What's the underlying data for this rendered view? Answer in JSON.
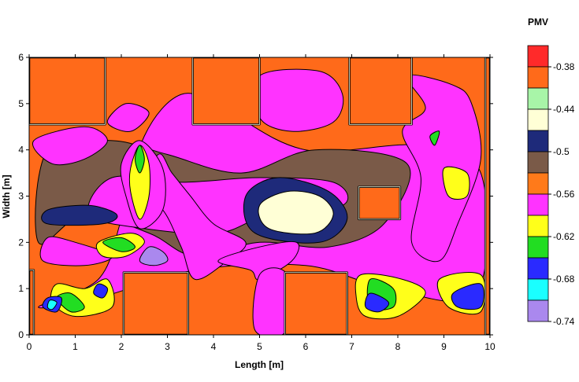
{
  "chart_data": {
    "type": "heatmap",
    "title": "",
    "xlabel": "Length [m]",
    "ylabel": "Width [m]",
    "xlim": [
      0,
      10
    ],
    "ylim": [
      0,
      6
    ],
    "x_ticks": [
      "0",
      "1",
      "2",
      "3",
      "4",
      "5",
      "6",
      "7",
      "8",
      "9",
      "10"
    ],
    "y_ticks": [
      "0",
      "1",
      "2",
      "3",
      "4",
      "5",
      "6"
    ],
    "grid": false,
    "legend_position": "right",
    "colorbar": {
      "title": "PMV",
      "levels": [
        {
          "label": "",
          "color": "#ff2a2a"
        },
        {
          "label": "-0.38",
          "color": "#ff6a1a"
        },
        {
          "label": "",
          "color": "#a8f5a8"
        },
        {
          "label": "-0.44",
          "color": "#ffffd6"
        },
        {
          "label": "",
          "color": "#1e2a7a"
        },
        {
          "label": "-0.5",
          "color": "#7a5a48"
        },
        {
          "label": "",
          "color": "#ff7a1a"
        },
        {
          "label": "-0.56",
          "color": "#ff33ff"
        },
        {
          "label": "",
          "color": "#ffff1a"
        },
        {
          "label": "-0.62",
          "color": "#22dd22"
        },
        {
          "label": "",
          "color": "#2a2aff"
        },
        {
          "label": "-0.68",
          "color": "#1affff"
        },
        {
          "label": "",
          "color": "#aa88ee"
        },
        {
          "label": "-0.74",
          "color": ""
        }
      ]
    },
    "room_outline": [
      [
        0.1,
        0.1
      ],
      [
        2.0,
        0.1
      ],
      [
        2.0,
        1.35
      ],
      [
        3.5,
        1.35
      ],
      [
        3.5,
        0.1
      ],
      [
        7.0,
        0.1
      ],
      [
        7.0,
        1.35
      ],
      [
        7.0,
        1.35
      ],
      [
        9.9,
        1.35
      ],
      [
        9.9,
        0.1
      ]
    ],
    "zones": [
      {
        "level": 1,
        "points": [
          [
            0,
            0
          ],
          [
            10,
            0
          ],
          [
            10,
            6
          ],
          [
            0,
            6
          ]
        ]
      },
      {
        "level": 7,
        "points": [
          [
            0.2,
            0.6
          ],
          [
            1.5,
            1.2
          ],
          [
            2.0,
            2.5
          ],
          [
            2.5,
            4.3
          ],
          [
            3.3,
            5.2
          ],
          [
            4.2,
            4.9
          ],
          [
            6.0,
            4.0
          ],
          [
            8.5,
            4.1
          ],
          [
            9.8,
            3.5
          ],
          [
            9.7,
            0.9
          ],
          [
            7.8,
            1.0
          ],
          [
            6.0,
            1.5
          ],
          [
            3.6,
            1.4
          ],
          [
            1.5,
            0.8
          ]
        ]
      },
      {
        "level": 5,
        "points": [
          [
            0.2,
            2.0
          ],
          [
            1.2,
            2.6
          ],
          [
            2.6,
            2.2
          ],
          [
            3.6,
            1.7
          ],
          [
            5.0,
            2.0
          ],
          [
            6.5,
            1.9
          ],
          [
            7.7,
            2.4
          ],
          [
            8.2,
            3.7
          ],
          [
            6.2,
            4.0
          ],
          [
            4.6,
            3.5
          ],
          [
            3.0,
            3.9
          ],
          [
            1.8,
            4.2
          ],
          [
            0.4,
            4.0
          ]
        ]
      },
      {
        "level": 7,
        "points": [
          [
            1.3,
            2.6
          ],
          [
            2.5,
            2.3
          ],
          [
            4.1,
            2.2
          ],
          [
            5.2,
            2.6
          ],
          [
            6.8,
            2.8
          ],
          [
            6.6,
            3.3
          ],
          [
            5.0,
            3.4
          ],
          [
            3.3,
            3.3
          ],
          [
            1.8,
            3.4
          ]
        ]
      },
      {
        "level": 4,
        "points": [
          [
            4.9,
            2.2
          ],
          [
            6.3,
            2.0
          ],
          [
            6.9,
            2.5
          ],
          [
            6.5,
            3.1
          ],
          [
            5.4,
            3.4
          ],
          [
            4.7,
            3.0
          ]
        ]
      },
      {
        "level": 3,
        "points": [
          [
            5.2,
            2.3
          ],
          [
            6.2,
            2.2
          ],
          [
            6.6,
            2.6
          ],
          [
            6.3,
            3.0
          ],
          [
            5.6,
            3.1
          ],
          [
            5.0,
            2.8
          ]
        ]
      },
      {
        "level": 4,
        "points": [
          [
            0.4,
            2.4
          ],
          [
            1.6,
            2.4
          ],
          [
            1.9,
            2.6
          ],
          [
            1.3,
            2.8
          ],
          [
            0.4,
            2.7
          ]
        ]
      },
      {
        "level": 7,
        "points": [
          [
            0.1,
            4.2
          ],
          [
            1.2,
            4.5
          ],
          [
            1.7,
            4.2
          ],
          [
            1.2,
            3.8
          ],
          [
            0.5,
            3.7
          ]
        ]
      },
      {
        "level": 7,
        "points": [
          [
            0.3,
            1.6
          ],
          [
            1.2,
            1.5
          ],
          [
            1.8,
            1.7
          ],
          [
            1.0,
            2.0
          ],
          [
            0.4,
            2.1
          ]
        ]
      },
      {
        "level": 7,
        "points": [
          [
            2.4,
            3.0
          ],
          [
            2.9,
            2.7
          ],
          [
            3.3,
            1.9
          ],
          [
            3.6,
            1.2
          ],
          [
            4.3,
            1.6
          ],
          [
            4.7,
            2.0
          ],
          [
            4.0,
            2.4
          ],
          [
            3.5,
            3.0
          ],
          [
            3.1,
            3.5
          ],
          [
            2.8,
            3.9
          ]
        ]
      },
      {
        "level": 7,
        "points": [
          [
            4.1,
            1.6
          ],
          [
            4.8,
            1.4
          ],
          [
            5.0,
            1.2
          ],
          [
            5.7,
            1.6
          ],
          [
            5.8,
            2.0
          ],
          [
            5.0,
            1.9
          ]
        ]
      },
      {
        "level": 7,
        "points": [
          [
            4.9,
            0.1
          ],
          [
            5.6,
            0.1
          ],
          [
            5.6,
            1.3
          ],
          [
            5.0,
            1.3
          ]
        ]
      },
      {
        "level": 7,
        "points": [
          [
            5.0,
            5.6
          ],
          [
            6.3,
            5.7
          ],
          [
            6.8,
            5.2
          ],
          [
            6.6,
            4.6
          ],
          [
            5.7,
            4.4
          ],
          [
            5.0,
            4.7
          ]
        ]
      },
      {
        "level": 7,
        "points": [
          [
            1.7,
            4.6
          ],
          [
            2.1,
            5.0
          ],
          [
            2.6,
            4.8
          ],
          [
            2.2,
            4.4
          ]
        ]
      },
      {
        "level": 7,
        "points": [
          [
            8.2,
            5.6
          ],
          [
            9.2,
            5.4
          ],
          [
            9.6,
            5.0
          ],
          [
            9.8,
            3.8
          ],
          [
            9.3,
            2.4
          ],
          [
            8.9,
            1.6
          ],
          [
            8.3,
            2.0
          ],
          [
            8.5,
            3.4
          ],
          [
            8.1,
            4.4
          ],
          [
            8.6,
            4.9
          ]
        ]
      },
      {
        "level": 7,
        "points": [
          [
            2.4,
            4.2
          ],
          [
            2.9,
            3.6
          ],
          [
            2.9,
            2.7
          ],
          [
            2.4,
            2.3
          ],
          [
            2.1,
            3.0
          ],
          [
            2.0,
            3.7
          ]
        ]
      },
      {
        "level": 8,
        "points": [
          [
            2.4,
            4.1
          ],
          [
            2.6,
            3.7
          ],
          [
            2.6,
            3.0
          ],
          [
            2.4,
            2.5
          ],
          [
            2.2,
            3.1
          ],
          [
            2.2,
            3.6
          ]
        ]
      },
      {
        "level": 9,
        "points": [
          [
            2.4,
            4.1
          ],
          [
            2.5,
            3.8
          ],
          [
            2.4,
            3.5
          ],
          [
            2.3,
            3.8
          ]
        ]
      },
      {
        "level": 8,
        "points": [
          [
            1.5,
            2.0
          ],
          [
            2.2,
            2.2
          ],
          [
            2.5,
            2.0
          ],
          [
            2.1,
            1.7
          ],
          [
            1.6,
            1.7
          ]
        ]
      },
      {
        "level": 9,
        "points": [
          [
            1.6,
            2.0
          ],
          [
            2.0,
            2.1
          ],
          [
            2.3,
            1.9
          ],
          [
            2.0,
            1.8
          ]
        ]
      },
      {
        "level": 8,
        "points": [
          [
            0.5,
            0.7
          ],
          [
            1.0,
            0.4
          ],
          [
            1.8,
            0.6
          ],
          [
            1.7,
            1.2
          ],
          [
            1.2,
            1.0
          ],
          [
            0.6,
            1.1
          ]
        ]
      },
      {
        "level": 9,
        "points": [
          [
            0.6,
            0.8
          ],
          [
            0.9,
            0.5
          ],
          [
            1.2,
            0.6
          ],
          [
            0.9,
            0.9
          ]
        ]
      },
      {
        "level": 10,
        "points": [
          [
            0.3,
            0.6
          ],
          [
            0.6,
            0.5
          ],
          [
            0.7,
            0.8
          ],
          [
            0.4,
            0.8
          ]
        ]
      },
      {
        "level": 11,
        "points": [
          [
            0.4,
            0.6
          ],
          [
            0.5,
            0.55
          ],
          [
            0.6,
            0.7
          ],
          [
            0.45,
            0.75
          ]
        ]
      },
      {
        "level": 10,
        "points": [
          [
            1.4,
            0.9
          ],
          [
            1.6,
            0.8
          ],
          [
            1.7,
            1.0
          ],
          [
            1.5,
            1.1
          ]
        ]
      },
      {
        "level": 12,
        "points": [
          [
            2.6,
            1.9
          ],
          [
            2.9,
            1.8
          ],
          [
            3.0,
            1.6
          ],
          [
            2.7,
            1.5
          ],
          [
            2.4,
            1.6
          ]
        ]
      },
      {
        "level": 8,
        "points": [
          [
            7.2,
            1.3
          ],
          [
            8.1,
            1.2
          ],
          [
            8.6,
            0.9
          ],
          [
            8.0,
            0.4
          ],
          [
            7.3,
            0.4
          ],
          [
            7.1,
            0.8
          ]
        ]
      },
      {
        "level": 9,
        "points": [
          [
            7.4,
            1.2
          ],
          [
            7.9,
            1.0
          ],
          [
            7.9,
            0.6
          ],
          [
            7.4,
            0.6
          ]
        ]
      },
      {
        "level": 10,
        "points": [
          [
            7.4,
            0.9
          ],
          [
            7.8,
            0.7
          ],
          [
            7.6,
            0.5
          ],
          [
            7.3,
            0.6
          ]
        ]
      },
      {
        "level": 8,
        "points": [
          [
            8.9,
            1.2
          ],
          [
            9.8,
            1.3
          ],
          [
            9.8,
            0.5
          ],
          [
            9.1,
            0.6
          ]
        ]
      },
      {
        "level": 10,
        "points": [
          [
            9.2,
            0.9
          ],
          [
            9.8,
            1.1
          ],
          [
            9.8,
            0.6
          ],
          [
            9.3,
            0.6
          ]
        ]
      },
      {
        "level": 8,
        "points": [
          [
            9.0,
            3.6
          ],
          [
            9.5,
            3.5
          ],
          [
            9.5,
            3.0
          ],
          [
            9.1,
            3.0
          ]
        ]
      },
      {
        "level": 9,
        "points": [
          [
            8.7,
            4.3
          ],
          [
            8.9,
            4.4
          ],
          [
            8.8,
            4.1
          ]
        ]
      }
    ],
    "obstacles": [
      {
        "points": [
          [
            0,
            6
          ],
          [
            1.65,
            6
          ],
          [
            1.65,
            4.55
          ],
          [
            0,
            4.55
          ]
        ]
      },
      {
        "points": [
          [
            3.55,
            6
          ],
          [
            5.0,
            6
          ],
          [
            5.0,
            4.55
          ],
          [
            3.55,
            4.55
          ]
        ]
      },
      {
        "points": [
          [
            6.95,
            6
          ],
          [
            8.3,
            6
          ],
          [
            8.3,
            4.55
          ],
          [
            6.95,
            4.55
          ]
        ]
      },
      {
        "points": [
          [
            9.9,
            6
          ],
          [
            10,
            6
          ],
          [
            10,
            0
          ],
          [
            9.9,
            0
          ]
        ]
      },
      {
        "points": [
          [
            0,
            1.4
          ],
          [
            0.1,
            1.4
          ],
          [
            0.1,
            0
          ],
          [
            0,
            0
          ]
        ]
      },
      {
        "points": [
          [
            2.05,
            1.35
          ],
          [
            3.45,
            1.35
          ],
          [
            3.45,
            0
          ],
          [
            2.05,
            0
          ]
        ]
      },
      {
        "points": [
          [
            5.55,
            1.35
          ],
          [
            6.9,
            1.35
          ],
          [
            6.9,
            0
          ],
          [
            5.55,
            0
          ]
        ]
      },
      {
        "points": [
          [
            7.15,
            3.2
          ],
          [
            8.05,
            3.2
          ],
          [
            8.05,
            2.5
          ],
          [
            7.15,
            2.5
          ]
        ]
      }
    ]
  }
}
